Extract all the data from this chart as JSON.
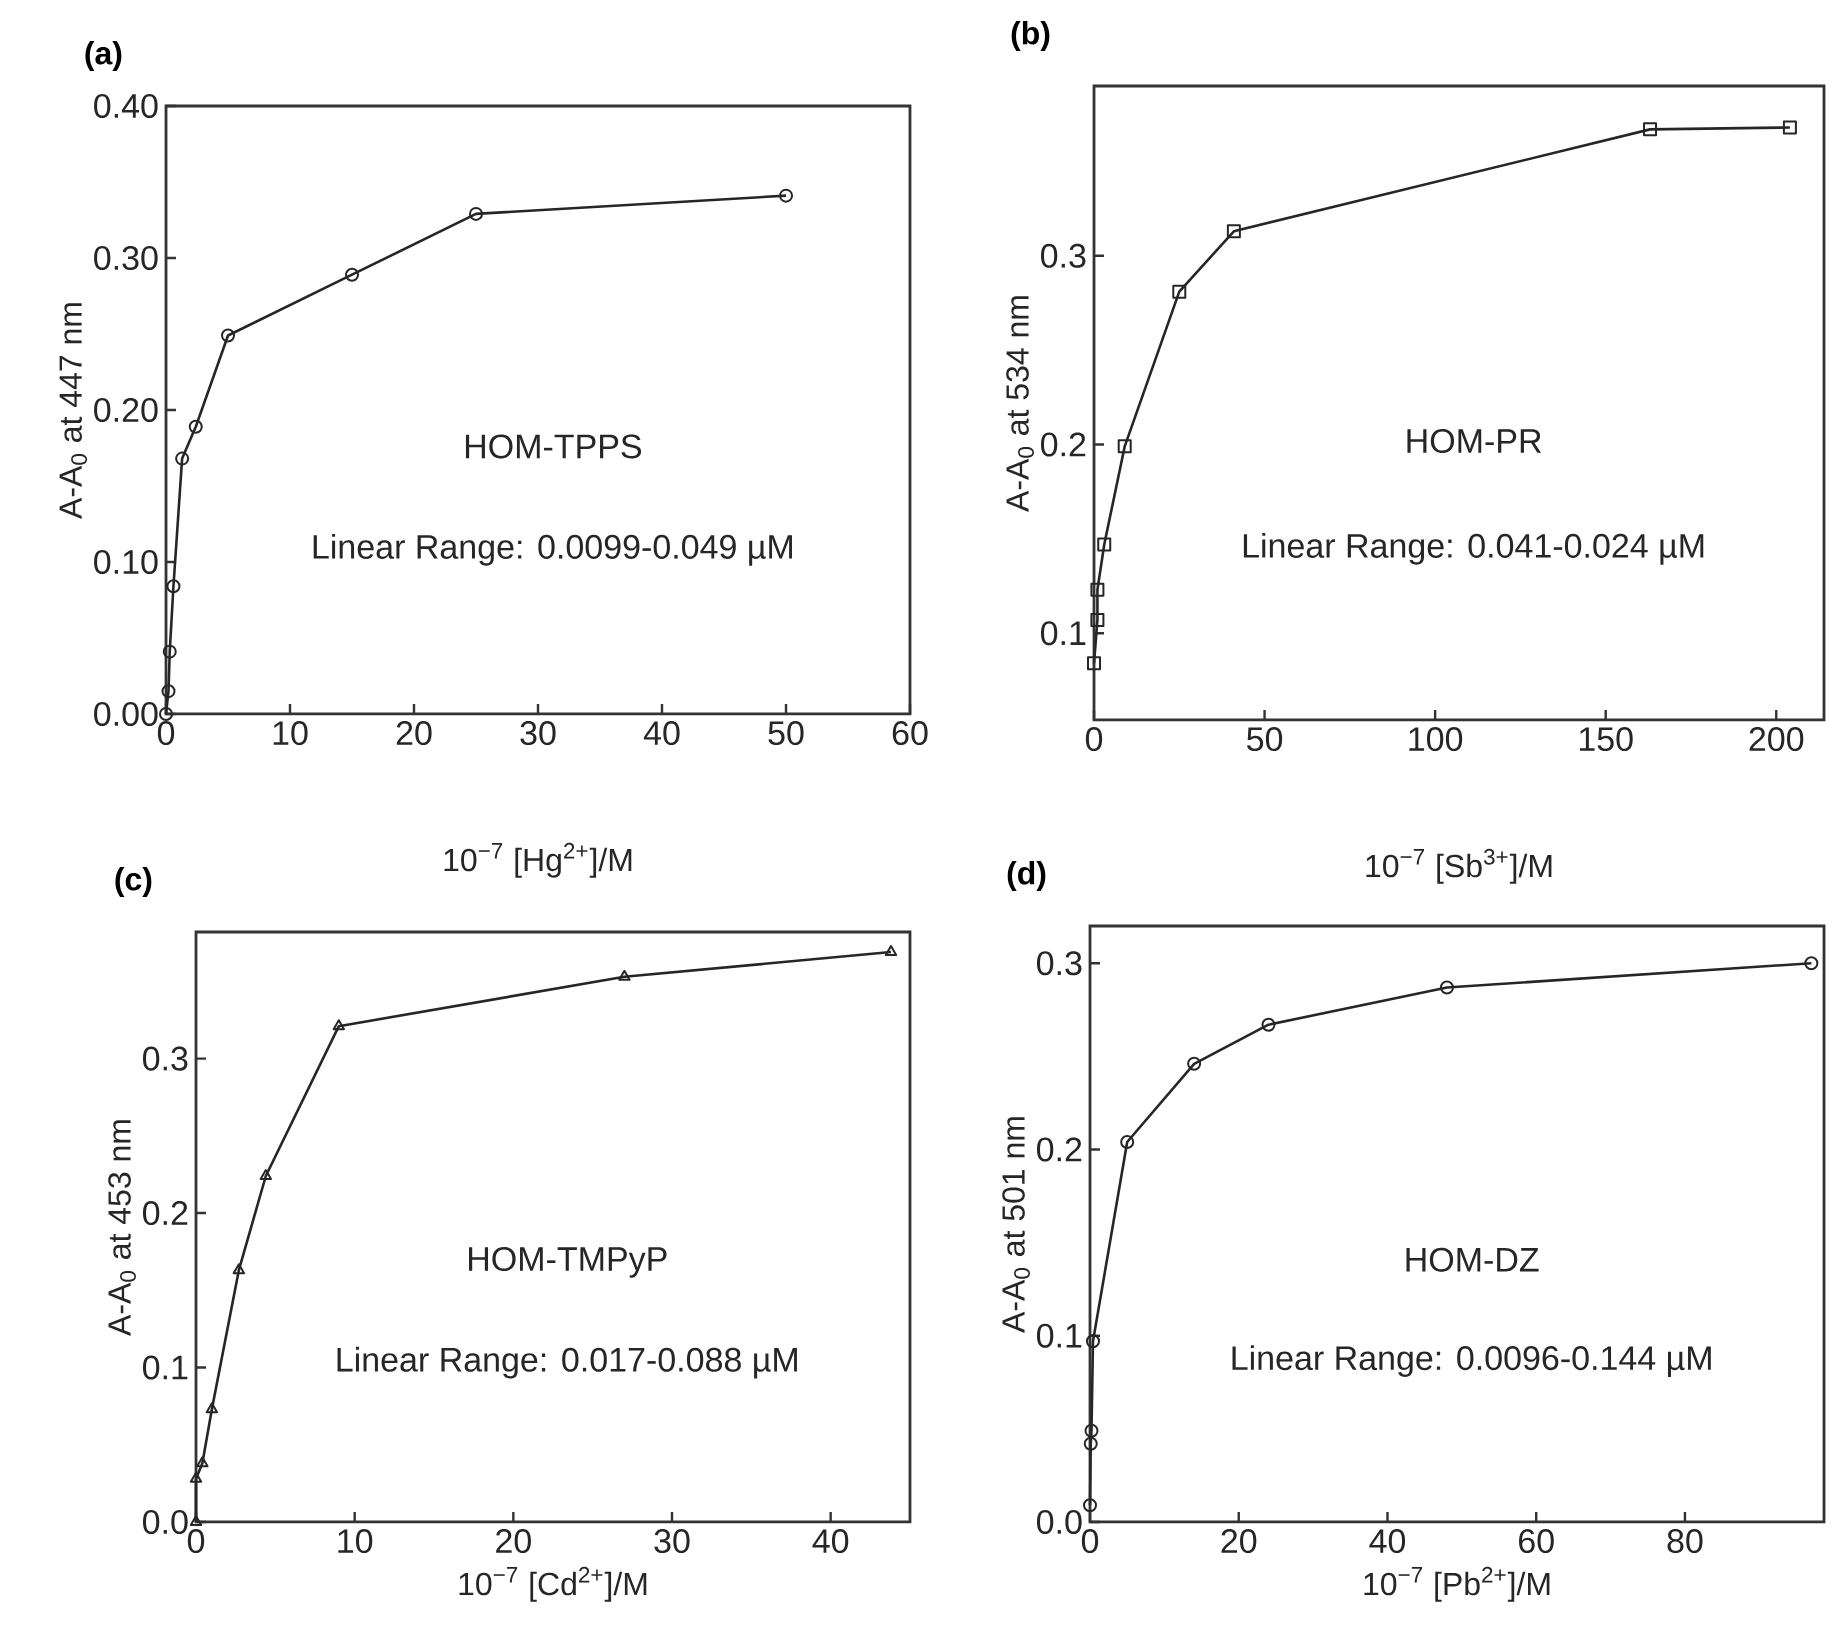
{
  "chart_data": [
    {
      "type": "line",
      "title": "(a)",
      "xlabel": "10$^{−7}$ [Hg$^{2+}$]/M",
      "ylabel": "A-A$_{0}$ at 447 nm",
      "marker": "circle",
      "x": [
        0,
        0.2,
        0.3,
        0.6,
        1.3,
        2.4,
        5,
        15,
        25,
        50
      ],
      "values": [
        0.0,
        0.015,
        0.041,
        0.084,
        0.168,
        0.189,
        0.249,
        0.289,
        0.329,
        0.341
      ],
      "xlim": [
        0,
        60
      ],
      "ylim": [
        0,
        0.4
      ],
      "xticks": [
        0,
        10,
        20,
        30,
        40,
        50,
        60
      ],
      "yticks": [
        {
          "value": 0,
          "label": "0.00"
        },
        {
          "value": 0.1,
          "label": "0.10"
        },
        {
          "value": 0.2,
          "label": "0.20"
        },
        {
          "value": 0.3,
          "label": "0.30"
        },
        {
          "value": 0.4,
          "label": "0.40"
        }
      ],
      "annotations": [
        "HOM-TPPS",
        "Linear Range: 0.0099-0.049 µM"
      ]
    },
    {
      "type": "line",
      "title": "(b)",
      "xlabel": "10$^{−7}$ [Sb$^{3+}$]/M",
      "ylabel": "A-A$_{0}$ at 534 nm",
      "marker": "square",
      "x": [
        0,
        1,
        1,
        3,
        9,
        25,
        41,
        163,
        204
      ],
      "values": [
        0.084,
        0.107,
        0.123,
        0.147,
        0.199,
        0.281,
        0.313,
        0.367,
        0.368
      ],
      "xlim": [
        0,
        214
      ],
      "ylim": [
        0.054,
        0.39
      ],
      "xticks": [
        0,
        50,
        100,
        150,
        200
      ],
      "yticks": [
        0.1,
        0.2,
        0.3
      ],
      "annotations": [
        "HOM-PR",
        "Linear Range: 0.041-0.024 µM"
      ]
    },
    {
      "type": "line",
      "title": "(c)",
      "xlabel": "10$^{−7}$ [Cd$^{2+}$]/M",
      "ylabel": "A-A$_{0}$ at 453 nm",
      "marker": "triangle",
      "x": [
        0,
        0,
        0.4,
        1,
        2.7,
        4.4,
        9,
        27,
        43.8
      ],
      "values": [
        0.0,
        0.028,
        0.038,
        0.073,
        0.163,
        0.224,
        0.321,
        0.353,
        0.369
      ],
      "xlim": [
        0,
        45
      ],
      "ylim": [
        0,
        0.382
      ],
      "xticks": [
        0,
        10,
        20,
        30,
        40
      ],
      "yticks": [
        {
          "value": 0,
          "label": "0.0"
        },
        0.1,
        0.2,
        0.3
      ],
      "annotations": [
        "HOM-TMPyP",
        "Linear Range: 0.017-0.088 µM"
      ]
    },
    {
      "type": "line",
      "title": "(d)",
      "xlabel": "10$^{−7}$ [Pb$^{2+}$]/M",
      "ylabel": "A-A$_{0}$ at 501 nm",
      "marker": "circle",
      "x": [
        0,
        0.1,
        0.2,
        0.4,
        5,
        14,
        24,
        48,
        97
      ],
      "values": [
        0.009,
        0.042,
        0.049,
        0.097,
        0.204,
        0.246,
        0.267,
        0.287,
        0.3
      ],
      "xlim": [
        0,
        98.7
      ],
      "ylim": [
        0,
        0.32
      ],
      "xticks": [
        0,
        20,
        40,
        60,
        80
      ],
      "yticks": [
        {
          "value": 0,
          "label": "0.0"
        },
        0.1,
        0.2,
        0.3
      ],
      "annotations": [
        "HOM-DZ",
        "Linear Range: 0.0096-0.144 µM"
      ]
    }
  ]
}
